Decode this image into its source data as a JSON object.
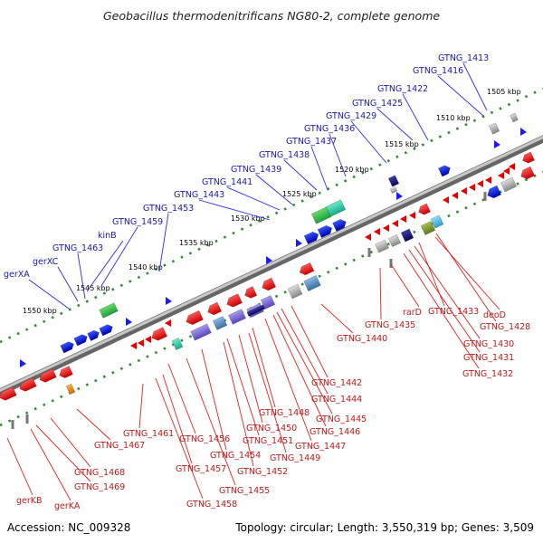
{
  "title": "Geobacillus thermodenitrificans NG80-2, complete genome",
  "footer": {
    "accession": "Accession: NC_009328",
    "summary": "Topology: circular; Length: 3,550,319 bp; Genes: 3,509"
  },
  "colors": {
    "forward_label": "#1a1aaa",
    "reverse_label": "#bb1a1a",
    "backbone": "#888888",
    "dotted_track": "#2e8b2e"
  },
  "kbp_ticks": [
    "1505 kbp",
    "1510 kbp",
    "1515 kbp",
    "1520 kbp",
    "1525 kbp",
    "1530 kbp",
    "1535 kbp",
    "1540 kbp",
    "1545 kbp",
    "1550 kbp"
  ],
  "forward_genes": [
    "GTNG_1413",
    "GTNG_1416",
    "GTNG_1422",
    "GTNG_1425",
    "GTNG_1429",
    "GTNG_1436",
    "GTNG_1437",
    "GTNG_1438",
    "GTNG_1439",
    "GTNG_1441",
    "GTNG_1443",
    "GTNG_1453",
    "GTNG_1459",
    "kinB",
    "GTNG_1463",
    "gerXC",
    "gerXA"
  ],
  "reverse_genes": [
    "deoD",
    "GTNG_1428",
    "GTNG_1433",
    "GTNG_1430",
    "GTNG_1431",
    "GTNG_1432",
    "rarD",
    "GTNG_1435",
    "GTNG_1440",
    "GTNG_1442",
    "GTNG_1444",
    "GTNG_1445",
    "GTNG_1446",
    "GTNG_1447",
    "GTNG_1448",
    "GTNG_1449",
    "GTNG_1450",
    "GTNG_1451",
    "GTNG_1452",
    "GTNG_1454",
    "GTNG_1455",
    "GTNG_1456",
    "GTNG_1457",
    "GTNG_1458",
    "GTNG_1461",
    "GTNG_1467",
    "GTNG_1468",
    "GTNG_1469",
    "gerKA",
    "gerKB"
  ]
}
